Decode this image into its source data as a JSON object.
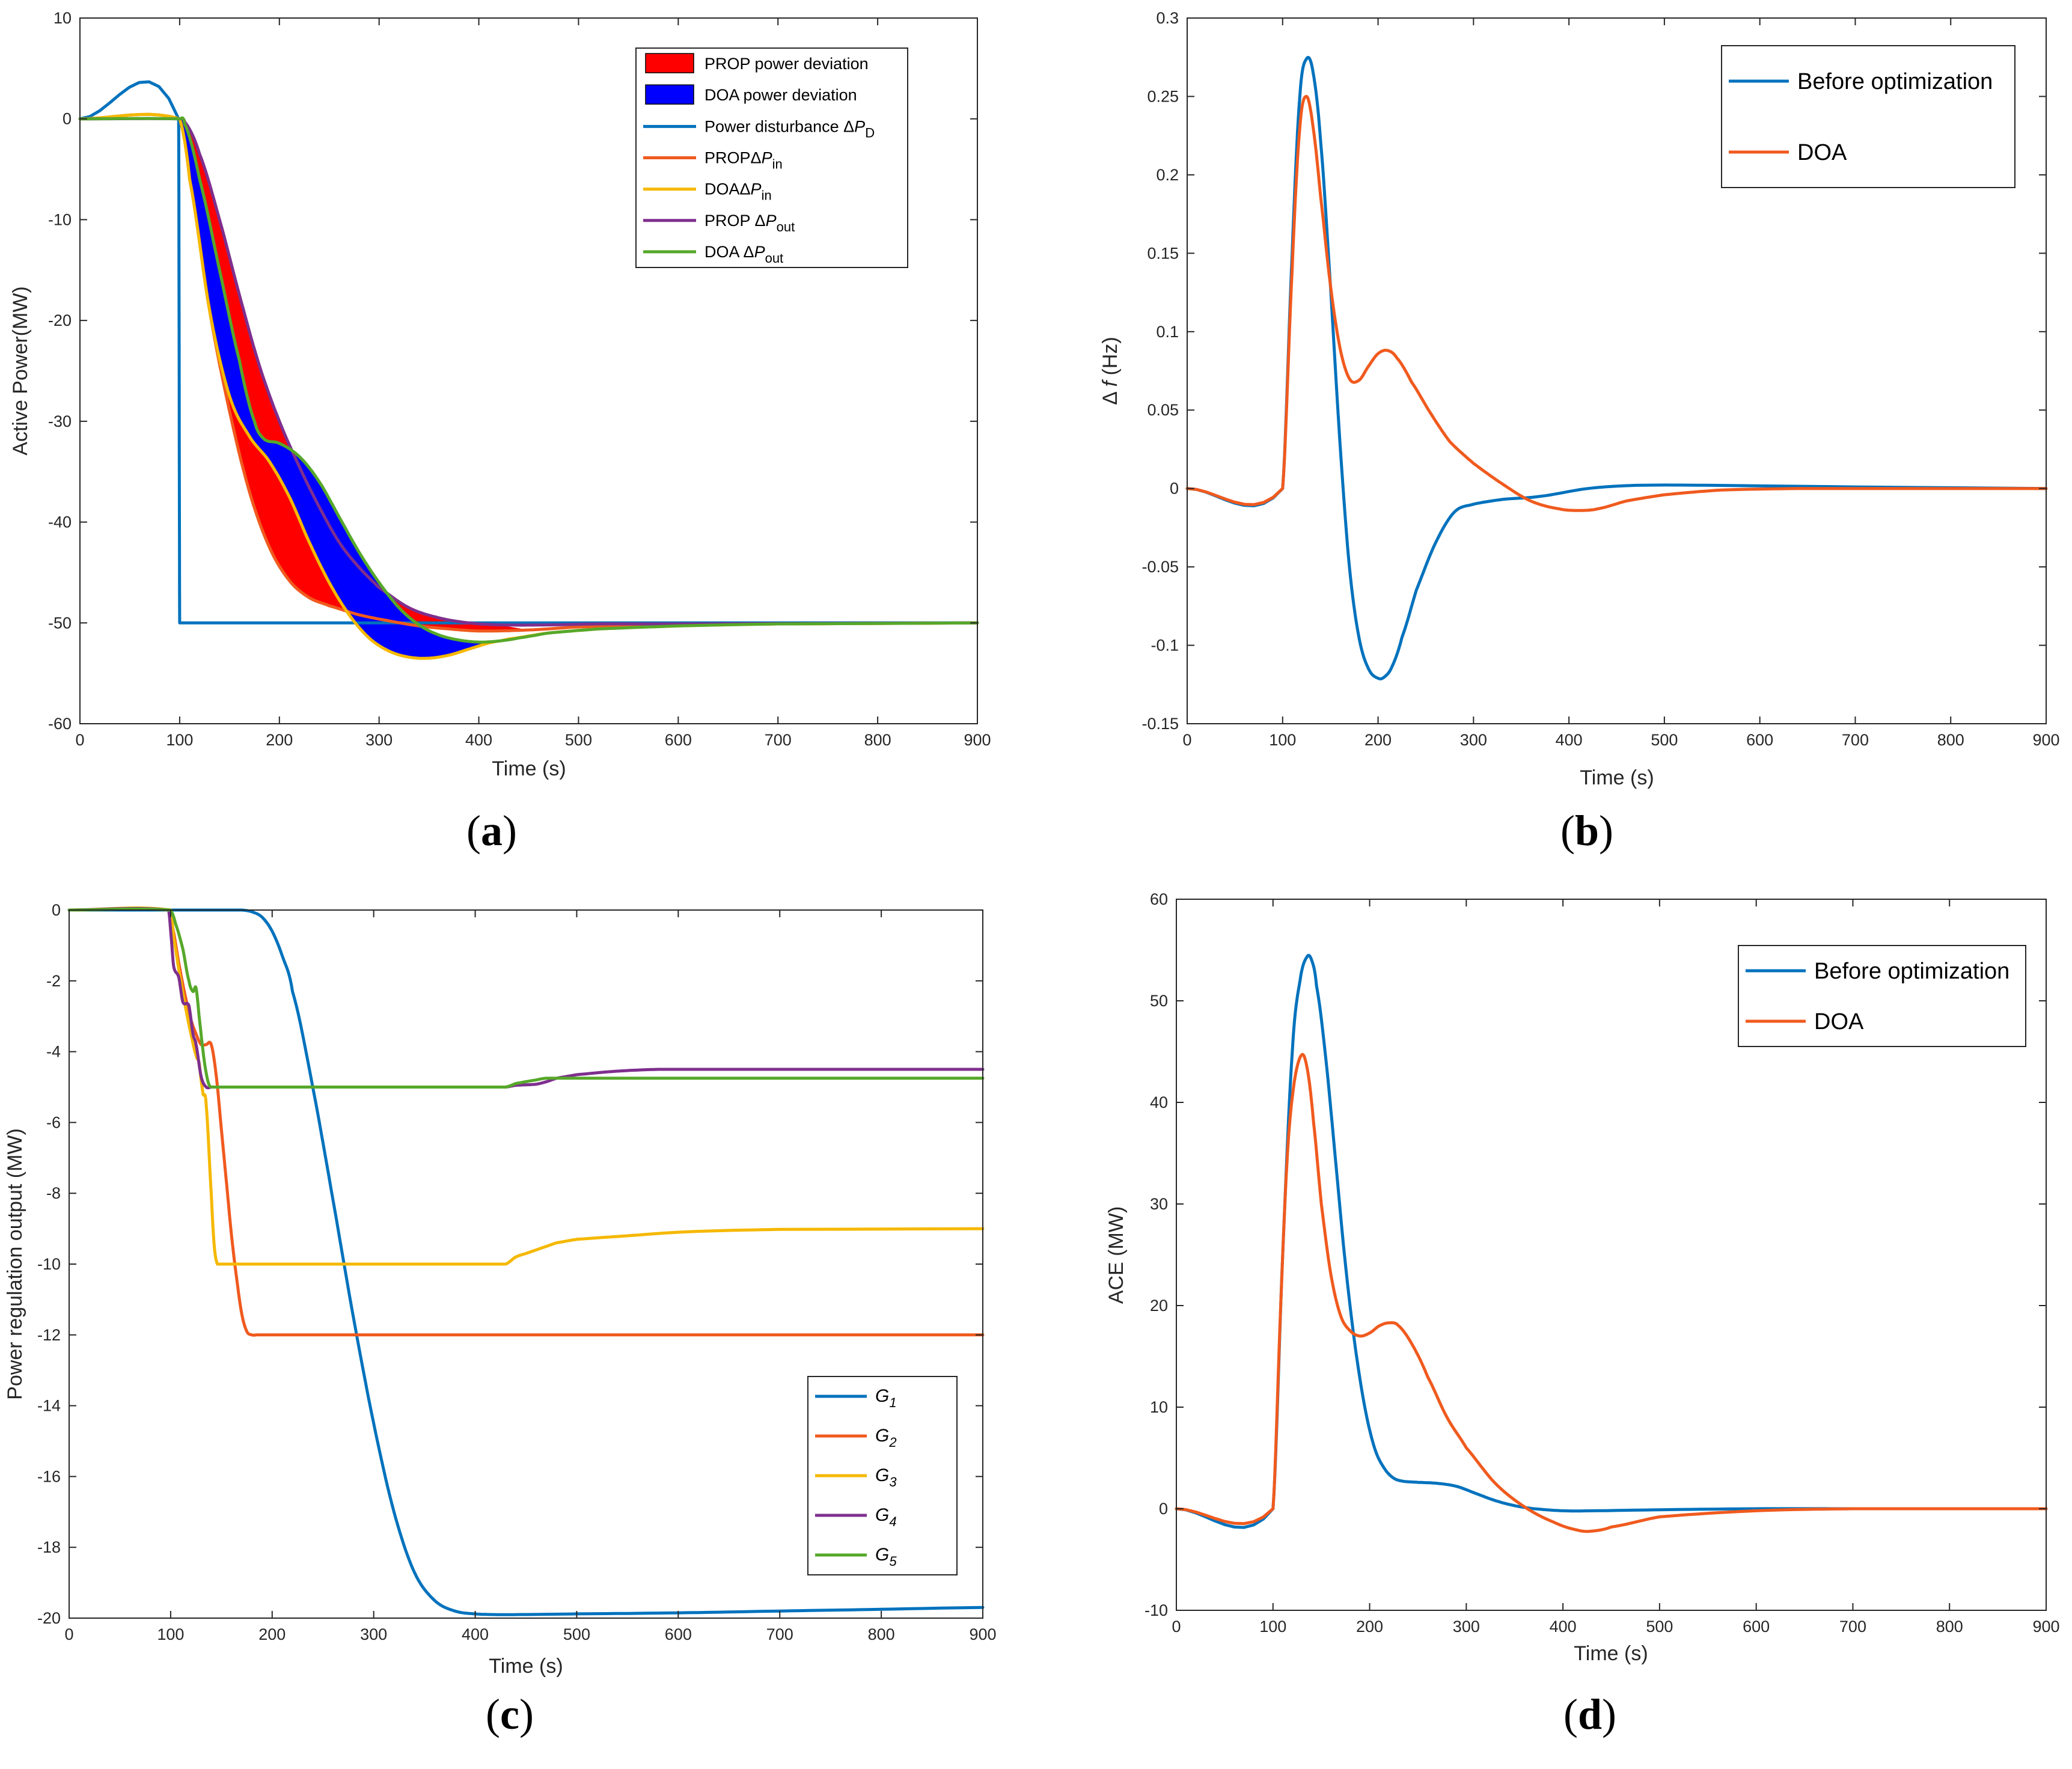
{
  "colors": {
    "blue": "#0072BD",
    "orange": "#F05A1E",
    "yellow": "#F5B800",
    "purple": "#7E2F8E",
    "green": "#56A82A",
    "red": "#FF0000",
    "navy": "#0000FF"
  },
  "chart_data": [
    {
      "id": "a",
      "panel_label": "(a)",
      "panel_letter": "a",
      "type": "line",
      "xlabel": "Time (s)",
      "ylabel": "Active Power(MW)",
      "xlim": [
        0,
        900
      ],
      "ylim": [
        -60,
        10
      ],
      "xticks": [
        0,
        100,
        200,
        300,
        400,
        500,
        600,
        700,
        800,
        900
      ],
      "yticks": [
        10,
        0,
        -10,
        -20,
        -30,
        -40,
        -50,
        -60
      ],
      "legend_position": "top-right",
      "legend": [
        {
          "kind": "patch",
          "color": "red",
          "label": "PROP power deviation"
        },
        {
          "kind": "patch",
          "color": "navy",
          "label": "DOA power deviation"
        },
        {
          "kind": "line",
          "color": "blue",
          "prefix": "Power disturbance Δ",
          "var": "P",
          "sub": "D"
        },
        {
          "kind": "line",
          "color": "orange",
          "prefix": "PROPΔ",
          "var": "P",
          "sub": "in"
        },
        {
          "kind": "line",
          "color": "yellow",
          "prefix": "DOAΔ",
          "var": "P",
          "sub": "in"
        },
        {
          "kind": "line",
          "color": "purple",
          "prefix": "PROP  Δ",
          "var": "P",
          "sub": "out"
        },
        {
          "kind": "line",
          "color": "green",
          "prefix": "DOA  Δ",
          "var": "P",
          "sub": "out"
        }
      ],
      "fills": [
        {
          "name": "PROP power deviation",
          "color": "red",
          "between": [
            "PROP ΔP_in",
            "PROP ΔP_out"
          ]
        },
        {
          "name": "DOA power deviation",
          "color": "navy",
          "between": [
            "DOA ΔP_in",
            "DOA ΔP_out"
          ]
        }
      ],
      "series": [
        {
          "name": "Power disturbance ΔP_D",
          "color": "blue",
          "x": [
            0,
            99,
            100,
            900
          ],
          "y": [
            0,
            0,
            -50,
            -50
          ]
        },
        {
          "name": "PROP ΔP_in",
          "color": "orange",
          "x": [
            0,
            100,
            110,
            130,
            150,
            170,
            190,
            210,
            230,
            250,
            280,
            310,
            340,
            370,
            400,
            450,
            500,
            600,
            700,
            900
          ],
          "y": [
            0,
            0,
            -6,
            -19,
            -29,
            -37,
            -42.5,
            -45.8,
            -47.5,
            -48.3,
            -49.2,
            -49.8,
            -50.3,
            -50.6,
            -50.8,
            -50.7,
            -50.4,
            -50.2,
            -50.1,
            -50
          ]
        },
        {
          "name": "DOA ΔP_in",
          "color": "yellow",
          "x": [
            0,
            100,
            110,
            130,
            150,
            170,
            190,
            210,
            230,
            250,
            270,
            290,
            310,
            330,
            350,
            370,
            390,
            410,
            430,
            470,
            520,
            600,
            700,
            900
          ],
          "y": [
            0,
            0,
            -6,
            -19,
            -27.5,
            -31.5,
            -34,
            -37.5,
            -42,
            -46,
            -49.2,
            -51.5,
            -52.8,
            -53.4,
            -53.5,
            -53.2,
            -52.6,
            -52,
            -51.6,
            -51,
            -50.6,
            -50.3,
            -50.1,
            -50
          ]
        },
        {
          "name": "PROP ΔP_out",
          "color": "purple",
          "x": [
            0,
            100,
            105,
            120,
            140,
            160,
            180,
            200,
            220,
            240,
            260,
            280,
            300,
            330,
            360,
            390,
            420,
            470,
            520,
            600,
            900
          ],
          "y": [
            0,
            0,
            -0.3,
            -3.5,
            -10,
            -17.5,
            -24.5,
            -30,
            -34.5,
            -38.5,
            -42,
            -44.5,
            -46.5,
            -48.5,
            -49.5,
            -50,
            -50.2,
            -50.2,
            -50.1,
            -50.1,
            -50
          ]
        },
        {
          "name": "DOA ΔP_out",
          "color": "green",
          "x": [
            0,
            100,
            105,
            120,
            140,
            160,
            175,
            185,
            200,
            220,
            240,
            260,
            280,
            300,
            320,
            340,
            360,
            380,
            400,
            420,
            440,
            470,
            520,
            600,
            700,
            900
          ],
          "y": [
            0,
            0,
            -0.5,
            -6,
            -15,
            -24,
            -30,
            -31.8,
            -32.2,
            -33.5,
            -36,
            -39.5,
            -43,
            -46,
            -48.5,
            -50.2,
            -51.2,
            -51.7,
            -51.9,
            -51.8,
            -51.5,
            -51,
            -50.6,
            -50.3,
            -50.1,
            -50
          ]
        }
      ]
    },
    {
      "id": "b",
      "panel_label": "(b)",
      "panel_letter": "b",
      "type": "line",
      "xlabel": "Time (s)",
      "ylabel_prefix": "Δ ",
      "ylabel_var": "f",
      "ylabel_suffix": " (Hz)",
      "xlim": [
        0,
        900
      ],
      "ylim": [
        -0.15,
        0.3
      ],
      "xticks": [
        0,
        100,
        200,
        300,
        400,
        500,
        600,
        700,
        800,
        900
      ],
      "yticks": [
        0.3,
        0.25,
        0.2,
        0.15,
        0.1,
        0.05,
        0,
        -0.05,
        -0.1,
        -0.15
      ],
      "ytick_labels": [
        "0.3",
        "0.25",
        "0.2",
        "0.15",
        "0.1",
        "0.05",
        "0",
        "-0.05",
        "-0.1",
        "-0.15"
      ],
      "legend_position": "top-right",
      "legend": [
        {
          "kind": "line",
          "color": "blue",
          "label": "Before optimization"
        },
        {
          "kind": "line",
          "color": "orange",
          "label": "DOA"
        }
      ],
      "series": [
        {
          "name": "Before optimization",
          "color": "blue",
          "x": [
            0,
            100,
            110,
            118,
            125,
            132,
            140,
            150,
            160,
            170,
            180,
            190,
            200,
            207,
            215,
            225,
            240,
            260,
            280,
            300,
            330,
            370,
            420,
            470,
            550,
            700,
            900
          ],
          "y": [
            0,
            0,
            0.15,
            0.25,
            0.274,
            0.265,
            0.22,
            0.13,
            0.03,
            -0.05,
            -0.095,
            -0.115,
            -0.121,
            -0.12,
            -0.113,
            -0.095,
            -0.065,
            -0.035,
            -0.015,
            -0.01,
            -0.007,
            -0.005,
            0,
            0.002,
            0.002,
            0.001,
            0
          ]
        },
        {
          "name": "DOA",
          "color": "orange",
          "x": [
            0,
            100,
            110,
            118,
            125,
            132,
            140,
            150,
            160,
            170,
            180,
            190,
            200,
            210,
            220,
            235,
            255,
            275,
            300,
            330,
            360,
            390,
            410,
            430,
            460,
            500,
            560,
            650,
            900
          ],
          "y": [
            0,
            0,
            0.14,
            0.23,
            0.25,
            0.23,
            0.185,
            0.13,
            0.09,
            0.07,
            0.069,
            0.078,
            0.086,
            0.088,
            0.083,
            0.068,
            0.048,
            0.03,
            0.016,
            0.003,
            -0.008,
            -0.013,
            -0.014,
            -0.013,
            -0.008,
            -0.004,
            -0.001,
            0,
            0
          ]
        }
      ]
    },
    {
      "id": "c",
      "panel_label": "(c)",
      "panel_letter": "c",
      "type": "line",
      "xlabel": "Time (s)",
      "ylabel": "Power regulation output (MW)",
      "xlim": [
        0,
        900
      ],
      "ylim": [
        -20,
        0
      ],
      "xticks": [
        0,
        100,
        200,
        300,
        400,
        500,
        600,
        700,
        800,
        900
      ],
      "yticks": [
        0,
        -2,
        -4,
        -6,
        -8,
        -10,
        -12,
        -14,
        -16,
        -18,
        -20
      ],
      "legend_position": "bottom-right",
      "legend": [
        {
          "kind": "line",
          "color": "blue",
          "var": "G",
          "sub": "1"
        },
        {
          "kind": "line",
          "color": "orange",
          "var": "G",
          "sub": "2"
        },
        {
          "kind": "line",
          "color": "yellow",
          "var": "G",
          "sub": "3"
        },
        {
          "kind": "line",
          "color": "purple",
          "var": "G",
          "sub": "4"
        },
        {
          "kind": "line",
          "color": "green",
          "var": "G",
          "sub": "5"
        }
      ],
      "series": [
        {
          "name": "G1",
          "color": "blue",
          "x": [
            0,
            170,
            180,
            190,
            200,
            210,
            220,
            240,
            260,
            280,
            300,
            320,
            340,
            360,
            380,
            400,
            420,
            440,
            500,
            600,
            700,
            800,
            900
          ],
          "y": [
            0,
            0,
            -0.05,
            -0.2,
            -0.6,
            -1.3,
            -2.3,
            -5,
            -8.2,
            -11.5,
            -14.5,
            -17,
            -18.7,
            -19.5,
            -19.8,
            -19.88,
            -19.9,
            -19.9,
            -19.88,
            -19.85,
            -19.8,
            -19.75,
            -19.7
          ]
        },
        {
          "name": "G2",
          "color": "orange",
          "x": [
            0,
            100,
            102,
            108,
            115,
            120,
            125,
            130,
            135,
            140,
            145,
            150,
            155,
            160,
            165,
            170,
            175,
            180,
            185,
            900
          ],
          "y": [
            0,
            0,
            -0.5,
            -1.5,
            -2.5,
            -3.1,
            -3.5,
            -3.8,
            -3.8,
            -3.8,
            -4.7,
            -6.2,
            -7.7,
            -9.2,
            -10.4,
            -11.4,
            -11.9,
            -12,
            -12,
            -12
          ]
        },
        {
          "name": "G3",
          "color": "yellow",
          "x": [
            0,
            100,
            103,
            110,
            115,
            120,
            125,
            128,
            130,
            132,
            135,
            140,
            143,
            146,
            430,
            440,
            450,
            460,
            470,
            480,
            500,
            550,
            600,
            650,
            700,
            900
          ],
          "y": [
            0,
            0,
            -0.8,
            -2,
            -2.8,
            -3.5,
            -4.1,
            -4.3,
            -4.8,
            -5.2,
            -5.5,
            -8,
            -9.5,
            -10,
            -10,
            -9.8,
            -9.7,
            -9.6,
            -9.5,
            -9.4,
            -9.3,
            -9.2,
            -9.1,
            -9.05,
            -9.02,
            -9
          ]
        },
        {
          "name": "G4",
          "color": "purple",
          "x": [
            0,
            98,
            100,
            103,
            108,
            112,
            118,
            122,
            125,
            130,
            135,
            140,
            430,
            440,
            460,
            470,
            480,
            500,
            540,
            580,
            900
          ],
          "y": [
            0,
            0,
            -0.6,
            -1.6,
            -1.9,
            -2.6,
            -2.7,
            -3.5,
            -3.8,
            -4.7,
            -5,
            -5,
            -5,
            -4.95,
            -4.92,
            -4.85,
            -4.75,
            -4.65,
            -4.55,
            -4.5,
            -4.5
          ]
        },
        {
          "name": "G5",
          "color": "green",
          "x": [
            0,
            100,
            105,
            112,
            118,
            122,
            125,
            128,
            132,
            135,
            138,
            142,
            430,
            440,
            460,
            470,
            900
          ],
          "y": [
            0,
            0,
            -0.4,
            -1.1,
            -2,
            -2.3,
            -2.2,
            -3,
            -4,
            -4.6,
            -4.95,
            -5,
            -5,
            -4.9,
            -4.8,
            -4.75,
            -4.75
          ]
        }
      ]
    },
    {
      "id": "d",
      "panel_label": "(d)",
      "panel_letter": "d",
      "type": "line",
      "xlabel": "Time (s)",
      "ylabel": "ACE (MW)",
      "xlim": [
        0,
        900
      ],
      "ylim": [
        -10,
        60
      ],
      "xticks": [
        0,
        100,
        200,
        300,
        400,
        500,
        600,
        700,
        800,
        900
      ],
      "yticks": [
        60,
        50,
        40,
        30,
        20,
        10,
        0,
        -10
      ],
      "legend_position": "top-right",
      "legend": [
        {
          "kind": "line",
          "color": "blue",
          "label": "Before optimization"
        },
        {
          "kind": "line",
          "color": "orange",
          "label": "DOA"
        }
      ],
      "series": [
        {
          "name": "Before optimization",
          "color": "blue",
          "x": [
            0,
            100,
            110,
            120,
            128,
            135,
            140,
            145,
            155,
            165,
            175,
            185,
            195,
            205,
            215,
            225,
            235,
            250,
            270,
            290,
            310,
            330,
            350,
            370,
            400,
            430,
            500,
            600,
            700,
            900
          ],
          "y": [
            0,
            0,
            25,
            45,
            52,
            54.3,
            54,
            51.5,
            44,
            34,
            24,
            16,
            10,
            6,
            4,
            3,
            2.7,
            2.6,
            2.5,
            2.2,
            1.5,
            0.8,
            0.3,
            0,
            -0.2,
            -0.2,
            -0.1,
            0,
            0,
            0
          ]
        },
        {
          "name": "DOA",
          "color": "orange",
          "x": [
            0,
            100,
            108,
            115,
            122,
            130,
            136,
            142,
            150,
            160,
            170,
            180,
            190,
            200,
            210,
            220,
            230,
            245,
            260,
            280,
            300,
            330,
            360,
            390,
            415,
            430,
            450,
            500,
            600,
            700,
            900
          ],
          "y": [
            0,
            0,
            20,
            35,
            42,
            44.7,
            43,
            38,
            30,
            23,
            19,
            17.5,
            17,
            17.3,
            18,
            18.3,
            18,
            16,
            13,
            9,
            6,
            2.5,
            0.2,
            -1.3,
            -2.1,
            -2.2,
            -1.8,
            -0.8,
            -0.2,
            0,
            0
          ]
        }
      ]
    }
  ]
}
